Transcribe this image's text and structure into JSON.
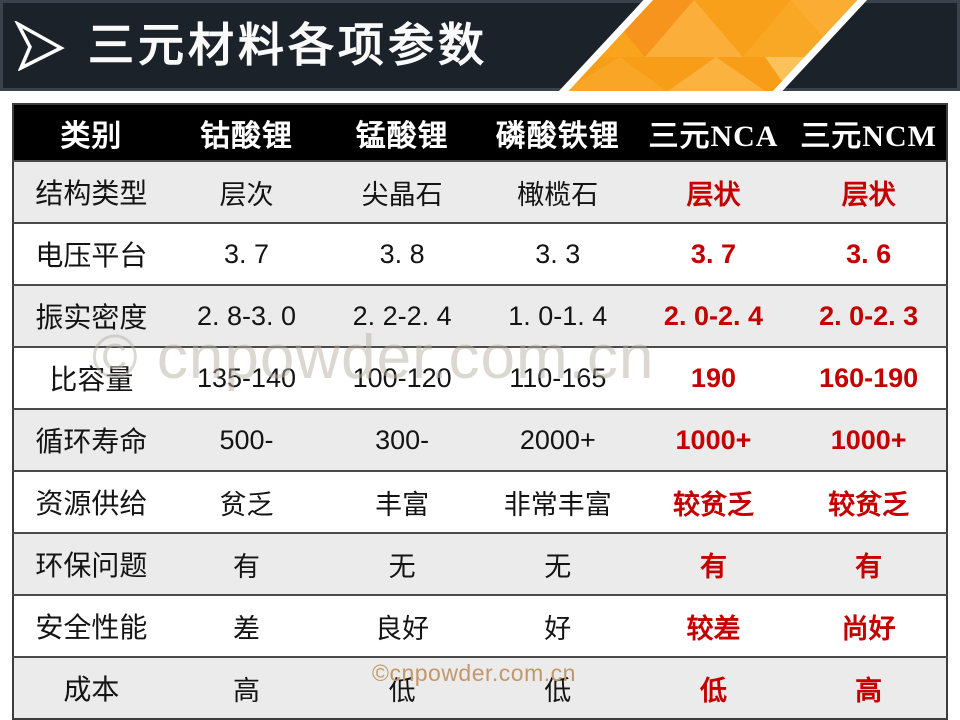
{
  "header": {
    "title": "三元材料各项参数"
  },
  "table": {
    "columns": [
      "类别",
      "钴酸锂",
      "锰酸锂",
      "磷酸铁锂",
      "三元NCA",
      "三元NCM"
    ],
    "highlight_columns": [
      4,
      5
    ],
    "rows": [
      {
        "label": "结构类型",
        "values": [
          "层次",
          "尖晶石",
          "橄榄石",
          "层状",
          "层状"
        ]
      },
      {
        "label": "电压平台",
        "values": [
          "3. 7",
          "3. 8",
          "3. 3",
          "3. 7",
          "3. 6"
        ]
      },
      {
        "label": "振实密度",
        "values": [
          "2. 8-3. 0",
          "2. 2-2. 4",
          "1. 0-1. 4",
          "2. 0-2. 4",
          "2. 0-2. 3"
        ]
      },
      {
        "label": "比容量",
        "values": [
          "135-140",
          "100-120",
          "110-165",
          "190",
          "160-190"
        ]
      },
      {
        "label": "循环寿命",
        "values": [
          "500-",
          "300-",
          "2000+",
          "1000+",
          "1000+"
        ]
      },
      {
        "label": "资源供给",
        "values": [
          "贫乏",
          "丰富",
          "非常丰富",
          "较贫乏",
          "较贫乏"
        ]
      },
      {
        "label": "环保问题",
        "values": [
          "有",
          "无",
          "无",
          "有",
          "有"
        ]
      },
      {
        "label": "安全性能",
        "values": [
          "差",
          "良好",
          "好",
          "较差",
          "尚好"
        ]
      },
      {
        "label": "成本",
        "values": [
          "高",
          "低",
          "低",
          "低",
          "高"
        ]
      }
    ]
  },
  "watermarks": {
    "center": "© cnpowder.com.cn",
    "bottom": "©cnpowder.com.cn"
  },
  "colors": {
    "accent_red": "#c40000",
    "band_bg": "#1c222a",
    "table_header_bg": "#000000",
    "row_alt_bg": "#ebebeb",
    "orange_primary": "#f9a41c",
    "watermark_center": "#b9b2a6",
    "watermark_bottom": "#c2976a"
  }
}
